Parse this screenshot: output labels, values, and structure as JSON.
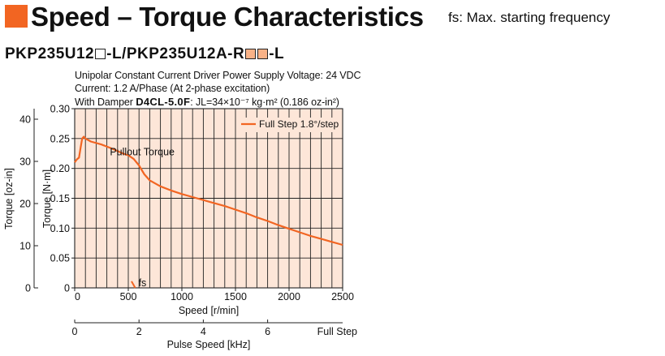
{
  "header": {
    "title": "Speed – Torque Characteristics",
    "note": "fs: Max. starting frequency",
    "accent_color": "#f26522"
  },
  "model": {
    "part1": "PKP235U12",
    "part2": "-L/PKP235U12A-R",
    "part3": "-L"
  },
  "conditions": {
    "line1": "Unipolar Constant Current Driver  Power Supply Voltage: 24 VDC",
    "line2": "Current: 1.2 A/Phase (At 2-phase excitation)",
    "line3_prefix": "With Damper ",
    "line3_damper": "D4CL-5.0F",
    "line3_suffix": ": JL=34×10⁻⁷ kg·m² (0.186 oz-in²)"
  },
  "chart_data": {
    "type": "line",
    "ylabel": "Torque [N·m]",
    "ylabel2": "Torque [oz-in]",
    "xlabel": "Speed [r/min]",
    "xlabel2": "Pulse Speed [kHz]",
    "xlim": [
      0,
      2500
    ],
    "ylim": [
      0,
      0.3
    ],
    "ylim2": [
      0,
      42.5
    ],
    "xticks": [
      "0",
      "500",
      "1000",
      "1500",
      "2000",
      "2500"
    ],
    "yticks": [
      "0",
      "0.05",
      "0.10",
      "0.15",
      "0.20",
      "0.25",
      "0.30"
    ],
    "yticks2": [
      "0",
      "10",
      "20",
      "30",
      "40"
    ],
    "xticks2": [
      "0",
      "2",
      "4",
      "6",
      "Full Step"
    ],
    "grid": true,
    "background_color": "#fde6d8",
    "line_color": "#f26522",
    "legend": "top-right",
    "annotation_pullout": "Pullout Torque",
    "annotation_fs": "fs",
    "series": [
      {
        "name": "Full Step 1.8°/step",
        "x": [
          0,
          20,
          40,
          55,
          70,
          85,
          100,
          150,
          250,
          350,
          450,
          500,
          550,
          600,
          650,
          700,
          800,
          900,
          1000,
          1100,
          1200,
          1300,
          1400,
          1500,
          1600,
          1700,
          1800,
          1900,
          2000,
          2100,
          2200,
          2300,
          2400,
          2500
        ],
        "y": [
          0.21,
          0.215,
          0.218,
          0.235,
          0.25,
          0.253,
          0.25,
          0.245,
          0.24,
          0.233,
          0.225,
          0.222,
          0.216,
          0.205,
          0.19,
          0.18,
          0.17,
          0.163,
          0.157,
          0.152,
          0.147,
          0.142,
          0.137,
          0.131,
          0.125,
          0.118,
          0.112,
          0.105,
          0.099,
          0.093,
          0.087,
          0.082,
          0.077,
          0.072
        ]
      }
    ],
    "fs_marker": {
      "x": [
        530,
        565
      ],
      "y": [
        0.011,
        0.0
      ]
    }
  }
}
